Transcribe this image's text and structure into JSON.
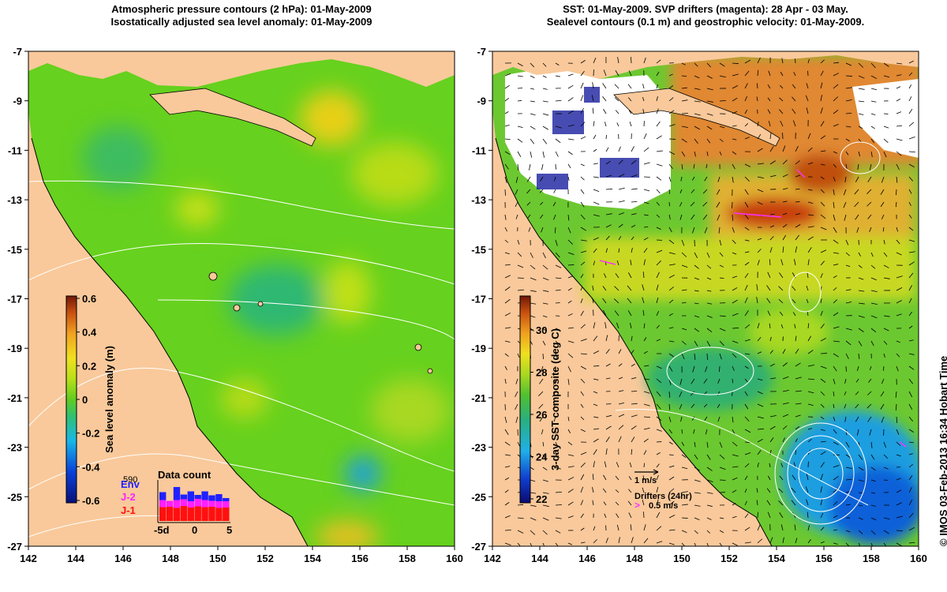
{
  "left_panel": {
    "title_line1": "Atmospheric pressure contours (2 hPa): 01-May-2009",
    "title_line2": "Isostatically adjusted sea level anomaly: 01-May-2009",
    "colorbar": {
      "label": "Sea level anomaly (m)",
      "ticks": [
        "0.6",
        "0.4",
        "0.2",
        "0",
        "-0.2",
        "-0.4",
        "-0.6"
      ]
    },
    "data_count": {
      "title": "Data count",
      "max_label": "590",
      "series": [
        {
          "name": "Env",
          "color": "#2020ff"
        },
        {
          "name": "J-2",
          "color": "#ff20ff"
        },
        {
          "name": "J-1",
          "color": "#ff1010"
        }
      ],
      "x_ticks": [
        "-5d",
        "0",
        "5"
      ],
      "bars": {
        "j1": [
          0.35,
          0.36,
          0.33,
          0.38,
          0.34,
          0.37,
          0.35,
          0.36,
          0.33,
          0.34
        ],
        "j2": [
          0.18,
          0.15,
          0.2,
          0.17,
          0.16,
          0.19,
          0.18,
          0.15,
          0.17,
          0.16
        ],
        "env": [
          0.2,
          0.0,
          0.33,
          0.12,
          0.25,
          0.1,
          0.22,
          0.14,
          0.18,
          0.08
        ]
      }
    }
  },
  "right_panel": {
    "title_line1": "SST: 01-May-2009. SVP drifters (magenta): 28 Apr - 03 May.",
    "title_line2": "Sealevel contours (0.1 m) and geostrophic velocity: 01-May-2009.",
    "colorbar": {
      "label": "3-day SST composite (deg C)",
      "ticks": [
        "30",
        "28",
        "26",
        "24",
        "22"
      ]
    },
    "velocity_scale_label": "1 m/s",
    "drifters_label": "Drifters (24hr)",
    "drifter_speed_label": "0.5 m/s"
  },
  "axes": {
    "lon_ticks": [
      "142",
      "144",
      "146",
      "148",
      "150",
      "152",
      "154",
      "156",
      "158",
      "160"
    ],
    "lat_ticks": [
      "-7",
      "-9",
      "-11",
      "-13",
      "-15",
      "-17",
      "-19",
      "-21",
      "-23",
      "-25",
      "-27"
    ],
    "lon_range": [
      142,
      160
    ],
    "lat_range": [
      -27,
      -7
    ]
  },
  "credit": "© IMOS 03-Feb-2013 16:34 Hobart Time",
  "colors": {
    "land": "#f9c99b",
    "sla_base": "#66d11e",
    "sla_high": "#c8e01a",
    "sla_low": "#2eb872",
    "sst_warm": "#e0a030",
    "sst_mid": "#6cc830",
    "sst_cool": "#1a9ee0"
  }
}
